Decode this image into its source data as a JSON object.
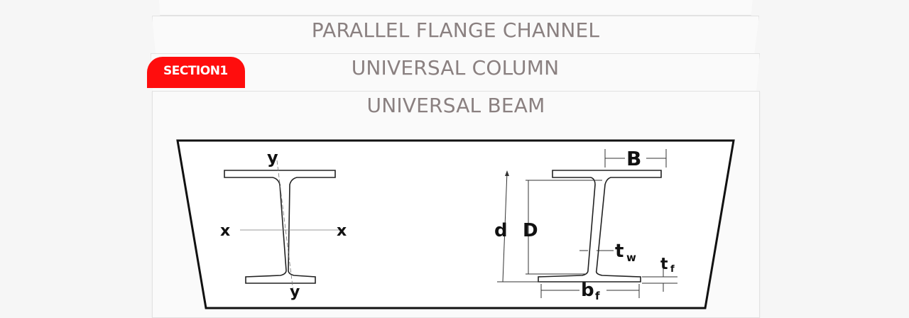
{
  "cards": {
    "parallel_flange_channel": "PARALLEL FLANGE CHANNEL",
    "universal_column": "UNIVERSAL COLUMN",
    "universal_beam": "UNIVERSAL BEAM"
  },
  "badge": {
    "label": "SECTION1",
    "color": "#ff0d0d"
  },
  "diagram": {
    "left_labels": {
      "y_top": "y",
      "y_bottom": "y",
      "x_left": "x",
      "x_right": "x"
    },
    "right_labels": {
      "B": "B",
      "d": "d",
      "D": "D",
      "t": "t",
      "w": "w",
      "tf_main": "t",
      "tf_sub": "f",
      "bf_main": "b",
      "bf_sub": "f"
    }
  }
}
